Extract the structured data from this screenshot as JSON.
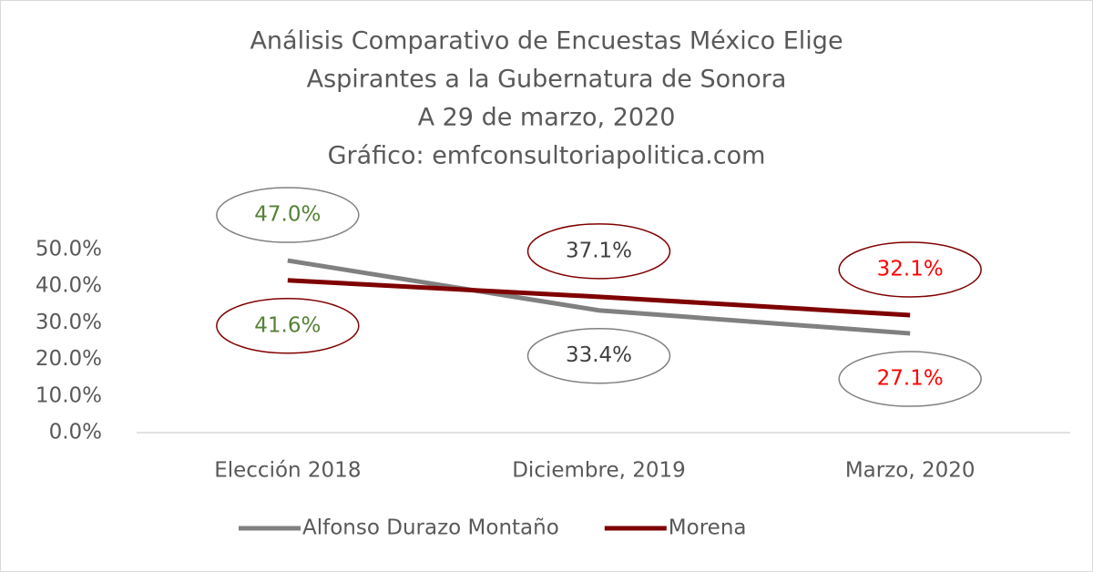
{
  "chart_data": {
    "type": "line",
    "title": [
      "Análisis Comparativo de Encuestas México Elige",
      "Aspirantes a la Gubernatura de Sonora",
      "A 29 de marzo, 2020",
      "Gráfico: emfconsultoriapolitica.com"
    ],
    "categories": [
      "Elección 2018",
      "Diciembre, 2019",
      "Marzo, 2020"
    ],
    "series": [
      {
        "name": "Alfonso Durazo Montaño",
        "color": "#808080",
        "values": [
          47.0,
          33.4,
          27.1
        ],
        "value_labels": [
          "47.0%",
          "33.4%",
          "27.1%"
        ]
      },
      {
        "name": "Morena",
        "color": "#7f0000",
        "values": [
          41.6,
          37.1,
          32.1
        ],
        "value_labels": [
          "41.6%",
          "37.1%",
          "32.1%"
        ]
      }
    ],
    "label_colors": [
      "#548235",
      "#404040",
      "#ff0000"
    ],
    "ylim": [
      0,
      50
    ],
    "yticks": [
      {
        "value": 0,
        "label": "0.0%"
      },
      {
        "value": 10,
        "label": "10.0%"
      },
      {
        "value": 20,
        "label": "20.0%"
      },
      {
        "value": 30,
        "label": "30.0%"
      },
      {
        "value": 40,
        "label": "40.0%"
      },
      {
        "value": 50,
        "label": "50.0%"
      }
    ],
    "grid": false,
    "legend": "bottom"
  }
}
